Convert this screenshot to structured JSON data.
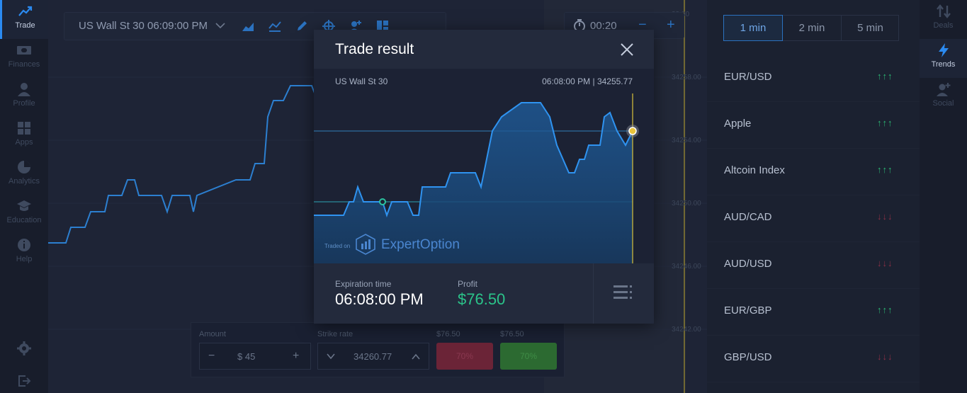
{
  "left_nav": {
    "items": [
      {
        "label": "Trade",
        "icon": "trade-icon",
        "active": true
      },
      {
        "label": "Finances",
        "icon": "wallet-icon"
      },
      {
        "label": "Profile",
        "icon": "user-icon"
      },
      {
        "label": "Apps",
        "icon": "grid-icon"
      },
      {
        "label": "Analytics",
        "icon": "pie-icon"
      },
      {
        "label": "Education",
        "icon": "graduation-cap-icon"
      },
      {
        "label": "Help",
        "icon": "info-icon"
      }
    ]
  },
  "toolbar": {
    "asset": "US Wall St 30 06:09:00 PM"
  },
  "timer": {
    "value": "00:20",
    "minus": "−",
    "plus": "+"
  },
  "price_axis": [
    "34258.00",
    "34254.00",
    "34250.00",
    "34246.00",
    "34242.00"
  ],
  "price_axis_top": "32.00",
  "trade_panel": {
    "amount_label": "Amount",
    "amount_minus": "−",
    "amount_value": "$ 45",
    "amount_plus": "+",
    "strike_label": "Strike rate",
    "strike_value": "34260.77",
    "put_payout": "$76.50",
    "call_payout": "$76.50",
    "put_percent": "70%",
    "call_percent": "70%"
  },
  "timeframes": [
    "1 min",
    "2 min",
    "5 min"
  ],
  "trends": [
    {
      "name": "EUR/USD",
      "arrows": "↑↑↑",
      "color": "#2bb673"
    },
    {
      "name": "Apple",
      "arrows": "↑↑↑",
      "color": "#2bb673"
    },
    {
      "name": "Altcoin Index",
      "arrows": "↑↑↑",
      "color": "#2bb673"
    },
    {
      "name": "AUD/CAD",
      "arrows": "↓↓↓",
      "color": "#c0394f"
    },
    {
      "name": "AUD/USD",
      "arrows": "↓↓↓",
      "color": "#c0394f"
    },
    {
      "name": "EUR/GBP",
      "arrows": "↑↑↑",
      "color": "#2bb673"
    },
    {
      "name": "GBP/USD",
      "arrows": "↓↓↓",
      "color": "#c0394f"
    }
  ],
  "right_nav": [
    {
      "label": "Deals",
      "icon": "deals-icon"
    },
    {
      "label": "Trends",
      "icon": "lightning-icon",
      "active": true
    },
    {
      "label": "Social",
      "icon": "add-user-icon"
    }
  ],
  "modal": {
    "title": "Trade result",
    "asset": "US Wall St 30",
    "time_price": "06:08:00 PM | 34255.77",
    "brand_traded": "Traded on",
    "brand_name": "ExpertOption",
    "expiration_label": "Expiration time",
    "expiration_value": "06:08:00 PM",
    "profit_label": "Profit",
    "profit_value": "$76.50"
  },
  "colors": {
    "accent": "#2b8af0",
    "profit": "#2bc48a",
    "up": "#2bb673",
    "down": "#c0394f",
    "expiry_line": "#d9c23a"
  }
}
